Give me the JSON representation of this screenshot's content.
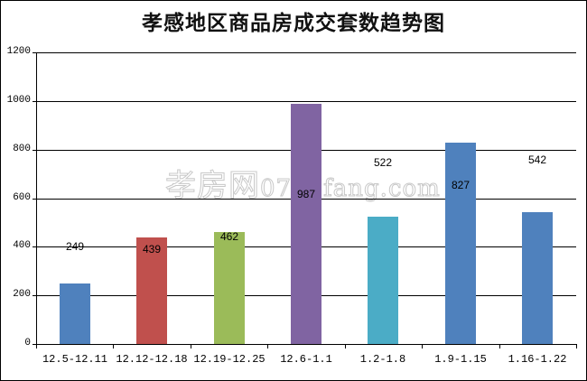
{
  "chart_data": {
    "type": "bar",
    "title": "孝感地区商品房成交套数趋势图",
    "xlabel": "",
    "ylabel": "",
    "ylim": [
      0,
      1200
    ],
    "yticks": [
      "0",
      "200",
      "400",
      "600",
      "800",
      "1000",
      "1200"
    ],
    "grid": true,
    "legend": null,
    "categories": [
      "12.5-12.11",
      "12.12-12.18",
      "12.19-12.25",
      "12.6-1.1",
      "1.2-1.8",
      "1.9-1.15",
      "1.16-1.22"
    ],
    "values": [
      249,
      439,
      462,
      987,
      522,
      827,
      542
    ],
    "colors": [
      "#4f81bd",
      "#c0504d",
      "#9bbb59",
      "#8064a2",
      "#4bacc6",
      "#4f81bd",
      "#4f81bd"
    ]
  },
  "watermark": {
    "brand": "孝房网",
    "site": "0712fang.com"
  }
}
